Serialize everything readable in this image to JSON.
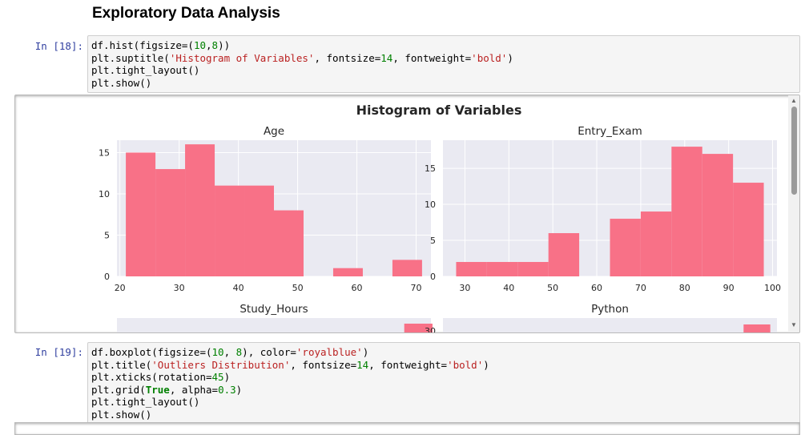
{
  "section": {
    "heading": "Exploratory Data Analysis"
  },
  "cells": [
    {
      "prompt": "In [18]:",
      "code": [
        [
          {
            "t": "df.hist(figsize=("
          },
          {
            "t": "10",
            "c": "n"
          },
          {
            "t": ","
          },
          {
            "t": "8",
            "c": "n"
          },
          {
            "t": "))"
          }
        ],
        [
          {
            "t": "plt.suptitle("
          },
          {
            "t": "'Histogram of Variables'",
            "c": "s"
          },
          {
            "t": ", fontsize="
          },
          {
            "t": "14",
            "c": "n"
          },
          {
            "t": ", fontweight="
          },
          {
            "t": "'bold'",
            "c": "s"
          },
          {
            "t": ")"
          }
        ],
        [
          {
            "t": "plt.tight_layout()"
          }
        ],
        [
          {
            "t": "plt.show()"
          }
        ]
      ]
    },
    {
      "prompt": "In [19]:",
      "code": [
        [
          {
            "t": "df.boxplot(figsize=("
          },
          {
            "t": "10",
            "c": "n"
          },
          {
            "t": ", "
          },
          {
            "t": "8",
            "c": "n"
          },
          {
            "t": "), color="
          },
          {
            "t": "'royalblue'",
            "c": "s"
          },
          {
            "t": ")"
          }
        ],
        [
          {
            "t": "plt.title("
          },
          {
            "t": "'Outliers Distribution'",
            "c": "s"
          },
          {
            "t": ", fontsize="
          },
          {
            "t": "14",
            "c": "n"
          },
          {
            "t": ", fontweight="
          },
          {
            "t": "'bold'",
            "c": "s"
          },
          {
            "t": ")"
          }
        ],
        [
          {
            "t": "plt.xticks(rotation="
          },
          {
            "t": "45",
            "c": "n"
          },
          {
            "t": ")"
          }
        ],
        [
          {
            "t": "plt.grid("
          },
          {
            "t": "True",
            "c": "k"
          },
          {
            "t": ", alpha="
          },
          {
            "t": "0.3",
            "c": "n"
          },
          {
            "t": ")"
          }
        ],
        [
          {
            "t": "plt.tight_layout()"
          }
        ],
        [
          {
            "t": "plt.show()"
          }
        ]
      ]
    }
  ],
  "colors": {
    "bar": "#f87187",
    "plot_bg": "#eaeaf2",
    "grid": "#ffffff"
  },
  "chart_data": {
    "type": "bar",
    "title": "Histogram of Variables",
    "subplots": [
      {
        "title": "Age",
        "bins": [
          [
            21,
            26
          ],
          [
            26,
            31
          ],
          [
            31,
            36
          ],
          [
            36,
            41
          ],
          [
            41,
            46
          ],
          [
            46,
            51
          ],
          [
            51,
            56
          ],
          [
            56,
            61
          ],
          [
            61,
            66
          ],
          [
            66,
            71
          ]
        ],
        "values": [
          15,
          13,
          16,
          11,
          11,
          8,
          0,
          1,
          0,
          2
        ],
        "xlim": [
          19.5,
          72.5
        ],
        "ylim": [
          0,
          16.5
        ],
        "xticks": [
          20,
          30,
          40,
          50,
          60,
          70
        ],
        "yticks": [
          0,
          5,
          10,
          15
        ]
      },
      {
        "title": "Entry_Exam",
        "bins": [
          [
            28,
            35
          ],
          [
            35,
            42
          ],
          [
            42,
            49
          ],
          [
            49,
            56
          ],
          [
            56,
            63
          ],
          [
            63,
            70
          ],
          [
            70,
            77
          ],
          [
            77,
            84
          ],
          [
            84,
            91
          ],
          [
            91,
            98
          ]
        ],
        "values": [
          2,
          2,
          2,
          6,
          0,
          8,
          9,
          18,
          17,
          13
        ],
        "xlim": [
          25,
          101
        ],
        "ylim": [
          0,
          18.9
        ],
        "xticks": [
          30,
          40,
          50,
          60,
          70,
          80,
          90,
          100
        ],
        "yticks": [
          0,
          5,
          10,
          15
        ]
      },
      {
        "title": "Study_Hours",
        "yticks": [],
        "partial": true
      },
      {
        "title": "Python",
        "yticks": [
          30
        ],
        "partial": true
      }
    ]
  }
}
